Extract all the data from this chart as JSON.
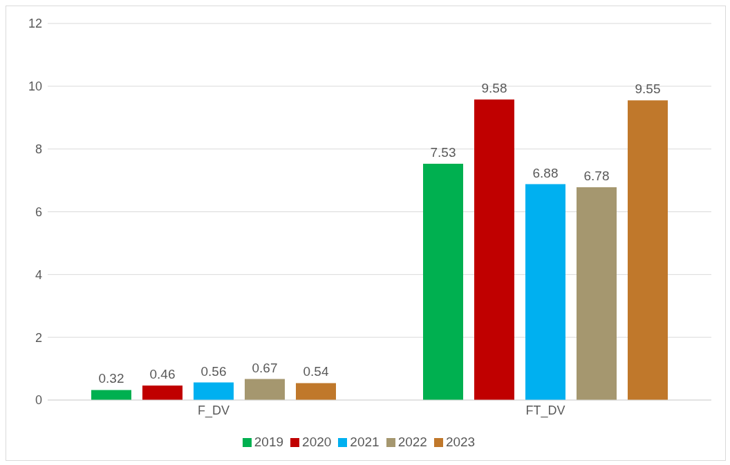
{
  "chart_data": {
    "type": "bar",
    "categories": [
      "F_DV",
      "FT_DV"
    ],
    "series": [
      {
        "name": "2019",
        "color": "#00b050",
        "values": [
          0.32,
          7.53
        ]
      },
      {
        "name": "2020",
        "color": "#c00000",
        "values": [
          0.46,
          9.58
        ]
      },
      {
        "name": "2021",
        "color": "#00b0f0",
        "values": [
          0.56,
          6.88
        ]
      },
      {
        "name": "2022",
        "color": "#a5976f",
        "values": [
          0.67,
          6.78
        ]
      },
      {
        "name": "2023",
        "color": "#c0782b",
        "values": [
          0.54,
          9.55
        ]
      }
    ],
    "ylim": [
      0,
      12
    ],
    "yticks": [
      0,
      2,
      4,
      6,
      8,
      10,
      12
    ],
    "grid": "y",
    "legend": "bottom",
    "data_labels": true
  }
}
